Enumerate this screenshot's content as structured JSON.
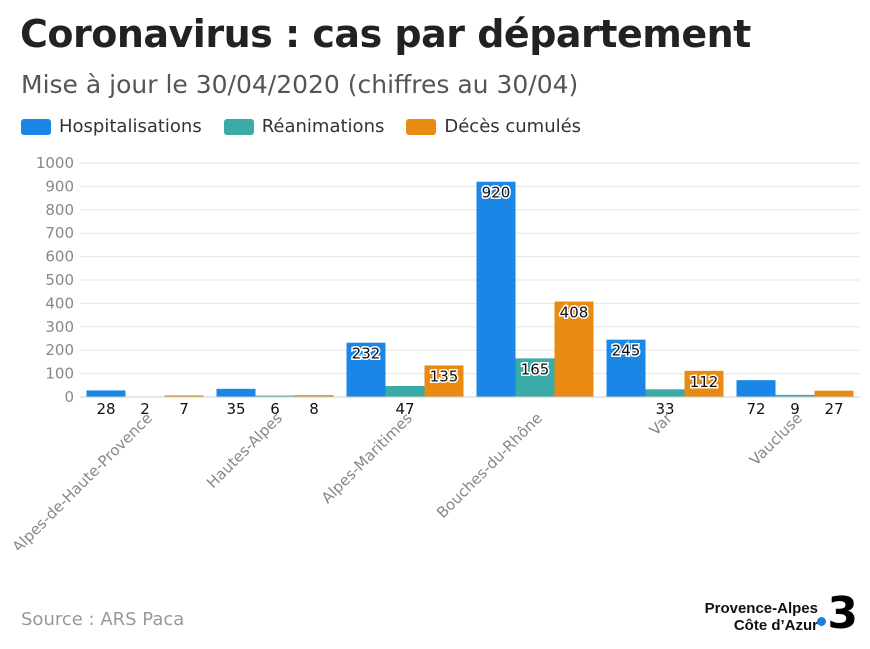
{
  "header": {
    "title": "Coronavirus : cas par département",
    "subtitle": "Mise à jour le 30/04/2020 (chiffres au 30/04)"
  },
  "legend": [
    {
      "label": "Hospitalisations",
      "color": "#1a87e6"
    },
    {
      "label": "Réanimations",
      "color": "#3aaba6"
    },
    {
      "label": "Décès cumulés",
      "color": "#e98b12"
    }
  ],
  "chart_data": {
    "type": "bar",
    "categories": [
      "Alpes-de-Haute-Provence",
      "Hautes-Alpes",
      "Alpes-Maritimes",
      "Bouches-du-Rhône",
      "Var",
      "Vaucluse"
    ],
    "series": [
      {
        "name": "Hospitalisations",
        "color": "#1a87e6",
        "values": [
          28,
          35,
          232,
          920,
          245,
          72
        ]
      },
      {
        "name": "Réanimations",
        "color": "#3aaba6",
        "values": [
          2,
          6,
          47,
          165,
          33,
          9
        ]
      },
      {
        "name": "Décès cumulés",
        "color": "#e98b12",
        "values": [
          7,
          8,
          135,
          408,
          112,
          27
        ]
      }
    ],
    "ylim": [
      0,
      1000
    ],
    "yticks": [
      0,
      100,
      200,
      300,
      400,
      500,
      600,
      700,
      800,
      900,
      1000
    ],
    "grid": true,
    "legend_position": "top-left"
  },
  "footer": {
    "source": "Source : ARS Paca",
    "brand_line1": "Provence-Alpes",
    "brand_line2": "Côte d’Azur",
    "brand_number": "3"
  }
}
